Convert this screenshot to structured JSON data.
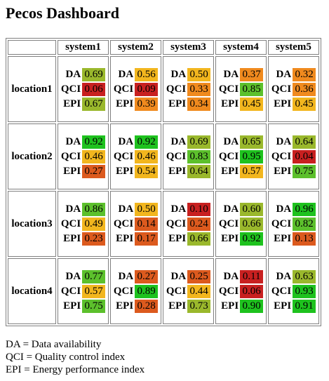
{
  "title": "Pecos Dashboard",
  "columns": [
    "system1",
    "system2",
    "system3",
    "system4",
    "system5"
  ],
  "metric_labels": [
    "DA",
    "QCI",
    "EPI"
  ],
  "rows": [
    {
      "location": "location1",
      "cells": [
        {
          "DA": "0.69",
          "QCI": "0.06",
          "EPI": "0.67"
        },
        {
          "DA": "0.56",
          "QCI": "0.09",
          "EPI": "0.39"
        },
        {
          "DA": "0.50",
          "QCI": "0.33",
          "EPI": "0.34"
        },
        {
          "DA": "0.37",
          "QCI": "0.85",
          "EPI": "0.45"
        },
        {
          "DA": "0.32",
          "QCI": "0.36",
          "EPI": "0.45"
        }
      ]
    },
    {
      "location": "location2",
      "cells": [
        {
          "DA": "0.92",
          "QCI": "0.46",
          "EPI": "0.27"
        },
        {
          "DA": "0.92",
          "QCI": "0.46",
          "EPI": "0.54"
        },
        {
          "DA": "0.69",
          "QCI": "0.83",
          "EPI": "0.64"
        },
        {
          "DA": "0.65",
          "QCI": "0.95",
          "EPI": "0.57"
        },
        {
          "DA": "0.64",
          "QCI": "0.04",
          "EPI": "0.75"
        }
      ]
    },
    {
      "location": "location3",
      "cells": [
        {
          "DA": "0.86",
          "QCI": "0.49",
          "EPI": "0.23"
        },
        {
          "DA": "0.50",
          "QCI": "0.14",
          "EPI": "0.17"
        },
        {
          "DA": "0.10",
          "QCI": "0.24",
          "EPI": "0.66"
        },
        {
          "DA": "0.60",
          "QCI": "0.66",
          "EPI": "0.92"
        },
        {
          "DA": "0.96",
          "QCI": "0.82",
          "EPI": "0.13"
        }
      ]
    },
    {
      "location": "location4",
      "cells": [
        {
          "DA": "0.77",
          "QCI": "0.57",
          "EPI": "0.75"
        },
        {
          "DA": "0.27",
          "QCI": "0.89",
          "EPI": "0.28"
        },
        {
          "DA": "0.25",
          "QCI": "0.44",
          "EPI": "0.73"
        },
        {
          "DA": "0.11",
          "QCI": "0.06",
          "EPI": "0.90"
        },
        {
          "DA": "0.63",
          "QCI": "0.93",
          "EPI": "0.91"
        }
      ]
    }
  ],
  "legend": [
    "DA = Data availability",
    "QCI = Quality control index",
    "EPI = Energy performance index"
  ],
  "colors": {
    "red": "#c82020",
    "dark_orange": "#dc5a1e",
    "orange": "#f08a1e",
    "amber": "#f2b61e",
    "yellow_green": "#9ab82c",
    "light_green": "#5cc02c",
    "green": "#1ec21e"
  }
}
